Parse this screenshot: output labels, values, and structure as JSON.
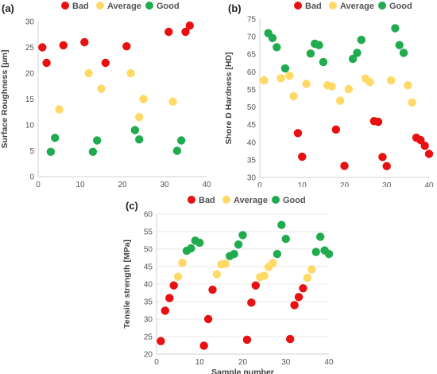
{
  "colors": {
    "Bad": "#e81010",
    "Average": "#ffd966",
    "Good": "#1fab4e"
  },
  "chart_data": [
    {
      "type": "scatter",
      "panel_label": "(a)",
      "xlabel": "Sample number",
      "ylabel": "Surface Roughness [µm]",
      "xlim": [
        0,
        40
      ],
      "ylim": [
        0,
        30
      ],
      "xticks": [
        0,
        10,
        20,
        30,
        40
      ],
      "yticks": [
        0,
        5,
        10,
        15,
        20,
        25,
        30
      ],
      "grid": false,
      "legend_position": "top",
      "series": [
        {
          "name": "Bad",
          "color_key": "Bad",
          "points": [
            [
              1,
              25
            ],
            [
              2,
              22
            ],
            [
              6,
              25.4
            ],
            [
              11,
              26
            ],
            [
              16,
              22
            ],
            [
              21,
              25.2
            ],
            [
              31,
              28
            ],
            [
              35,
              28
            ],
            [
              36,
              29.2
            ]
          ]
        },
        {
          "name": "Average",
          "color_key": "Average",
          "points": [
            [
              5,
              13
            ],
            [
              12,
              20
            ],
            [
              15,
              17
            ],
            [
              22,
              20
            ],
            [
              24,
              11.5
            ],
            [
              25,
              15
            ],
            [
              32,
              14.5
            ]
          ]
        },
        {
          "name": "Good",
          "color_key": "Good",
          "points": [
            [
              3,
              4.8
            ],
            [
              4,
              7.5
            ],
            [
              13,
              4.8
            ],
            [
              14,
              7
            ],
            [
              23,
              9
            ],
            [
              24,
              7.2
            ],
            [
              33,
              5
            ],
            [
              34,
              7
            ]
          ]
        }
      ]
    },
    {
      "type": "scatter",
      "panel_label": "(b)",
      "xlabel": "Sample number",
      "ylabel": "Shore D Hardness [HD]",
      "xlim": [
        0,
        40
      ],
      "ylim": [
        30,
        75
      ],
      "xticks": [
        0,
        10,
        20,
        30,
        40
      ],
      "yticks": [
        30,
        35,
        40,
        45,
        50,
        55,
        60,
        65,
        70,
        75
      ],
      "grid": false,
      "legend_position": "top",
      "series": [
        {
          "name": "Bad",
          "color_key": "Bad",
          "points": [
            [
              9,
              42.6
            ],
            [
              10,
              35.9
            ],
            [
              18,
              43.6
            ],
            [
              20,
              33.3
            ],
            [
              27,
              46
            ],
            [
              28,
              45.8
            ],
            [
              29,
              35.8
            ],
            [
              30,
              33.2
            ],
            [
              37,
              41.3
            ],
            [
              38,
              40.6
            ],
            [
              39,
              39
            ],
            [
              40,
              36.7
            ]
          ]
        },
        {
          "name": "Average",
          "color_key": "Average",
          "points": [
            [
              1,
              57.6
            ],
            [
              5,
              58.2
            ],
            [
              7,
              58.9
            ],
            [
              8,
              53.1
            ],
            [
              11,
              56.6
            ],
            [
              16,
              56.2
            ],
            [
              17,
              55.9
            ],
            [
              19,
              51.8
            ],
            [
              21,
              55.1
            ],
            [
              25,
              58.1
            ],
            [
              26,
              57.1
            ],
            [
              31,
              57.6
            ],
            [
              35,
              56.2
            ],
            [
              36,
              51.3
            ]
          ]
        },
        {
          "name": "Good",
          "color_key": "Good",
          "points": [
            [
              2,
              71
            ],
            [
              3,
              69.6
            ],
            [
              4,
              67
            ],
            [
              6,
              61
            ],
            [
              12,
              65.2
            ],
            [
              13,
              68
            ],
            [
              14,
              67.6
            ],
            [
              15,
              62.8
            ],
            [
              22,
              63.7
            ],
            [
              23,
              65.4
            ],
            [
              24,
              69.1
            ],
            [
              32,
              72.4
            ],
            [
              33,
              67.6
            ],
            [
              34,
              65.4
            ]
          ]
        }
      ]
    },
    {
      "type": "scatter",
      "panel_label": "(c)",
      "xlabel": "Sample number",
      "ylabel": "Tensile strength [MPa]",
      "xlim": [
        0,
        40
      ],
      "ylim": [
        20,
        60
      ],
      "xticks": [
        0,
        10,
        20,
        30,
        40
      ],
      "yticks": [
        20,
        25,
        30,
        35,
        40,
        45,
        50,
        55,
        60
      ],
      "grid": true,
      "legend_position": "top",
      "series": [
        {
          "name": "Bad",
          "color_key": "Bad",
          "points": [
            [
              1,
              23.7
            ],
            [
              2,
              32.4
            ],
            [
              3,
              36
            ],
            [
              4,
              39.6
            ],
            [
              11,
              22.4
            ],
            [
              12,
              30
            ],
            [
              13,
              38.4
            ],
            [
              21,
              24.1
            ],
            [
              22,
              34.7
            ],
            [
              23,
              39.6
            ],
            [
              31,
              24.3
            ],
            [
              32,
              34
            ],
            [
              33,
              36.3
            ],
            [
              34,
              38.8
            ]
          ]
        },
        {
          "name": "Average",
          "color_key": "Average",
          "points": [
            [
              5,
              42.1
            ],
            [
              6,
              46.1
            ],
            [
              14,
              42.8
            ],
            [
              15,
              45.6
            ],
            [
              16,
              45.8
            ],
            [
              24,
              42
            ],
            [
              25,
              42.4
            ],
            [
              26,
              44.9
            ],
            [
              27,
              46
            ],
            [
              35,
              41.8
            ],
            [
              36,
              44.2
            ]
          ]
        },
        {
          "name": "Good",
          "color_key": "Good",
          "points": [
            [
              7,
              49.5
            ],
            [
              8,
              50.2
            ],
            [
              9,
              52.4
            ],
            [
              10,
              51.8
            ],
            [
              17,
              48
            ],
            [
              18,
              48.6
            ],
            [
              19,
              51.3
            ],
            [
              20,
              54
            ],
            [
              28,
              48.6
            ],
            [
              29,
              56.9
            ],
            [
              30,
              52.9
            ],
            [
              37,
              49.2
            ],
            [
              38,
              53.5
            ],
            [
              39,
              49.6
            ],
            [
              40,
              48.6
            ]
          ]
        }
      ]
    }
  ]
}
